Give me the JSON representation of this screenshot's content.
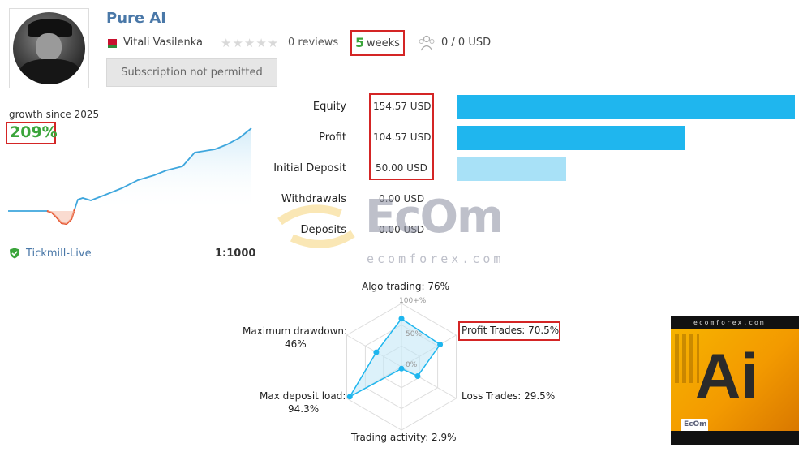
{
  "header": {
    "title": "Pure AI",
    "author": "Vitali Vasilenka",
    "stars": "★★★★★",
    "reviews": "0 reviews",
    "weeks_num": "5",
    "weeks_label": "weeks",
    "subscribers": "0 / 0 USD",
    "subscribe_button": "Subscription not permitted"
  },
  "growth": {
    "label": "growth since 2025",
    "value": "209%",
    "broker": "Tickmill-Live",
    "leverage": "1:1000"
  },
  "stats": [
    {
      "label": "Equity",
      "value": "154.57 USD",
      "bar": 1.0,
      "color": "#1fb6ee"
    },
    {
      "label": "Profit",
      "value": "104.57 USD",
      "bar": 0.676,
      "color": "#1fb6ee"
    },
    {
      "label": "Initial Deposit",
      "value": "50.00 USD",
      "bar": 0.323,
      "color": "#a8e1f7"
    },
    {
      "label": "Withdrawals",
      "value": "0.00 USD",
      "bar": 0,
      "color": "#1fb6ee"
    },
    {
      "label": "Deposits",
      "value": "0.00 USD",
      "bar": 0,
      "color": "#1fb6ee"
    }
  ],
  "watermark": {
    "brand": "EcOm",
    "site": "ecomforex.com"
  },
  "radar": {
    "algo_trading": "Algo trading: 76%",
    "profit_trades": "Profit Trades: 70.5%",
    "loss_trades": "Loss Trades: 29.5%",
    "trading_activity": "Trading activity: 2.9%",
    "max_deposit_load_1": "Max deposit load:",
    "max_deposit_load_2": "94.3%",
    "max_drawdown_1": "Maximum drawdown:",
    "max_drawdown_2": "46%",
    "tick_100": "100+%",
    "tick_50": "50%",
    "tick_0": "0%",
    "values": [
      0.76,
      0.705,
      0.295,
      0.029,
      0.943,
      0.46
    ]
  },
  "ai_image": {
    "top_text": "ecomforex.com",
    "big_text": "Ai",
    "logo": "EcOm"
  }
}
